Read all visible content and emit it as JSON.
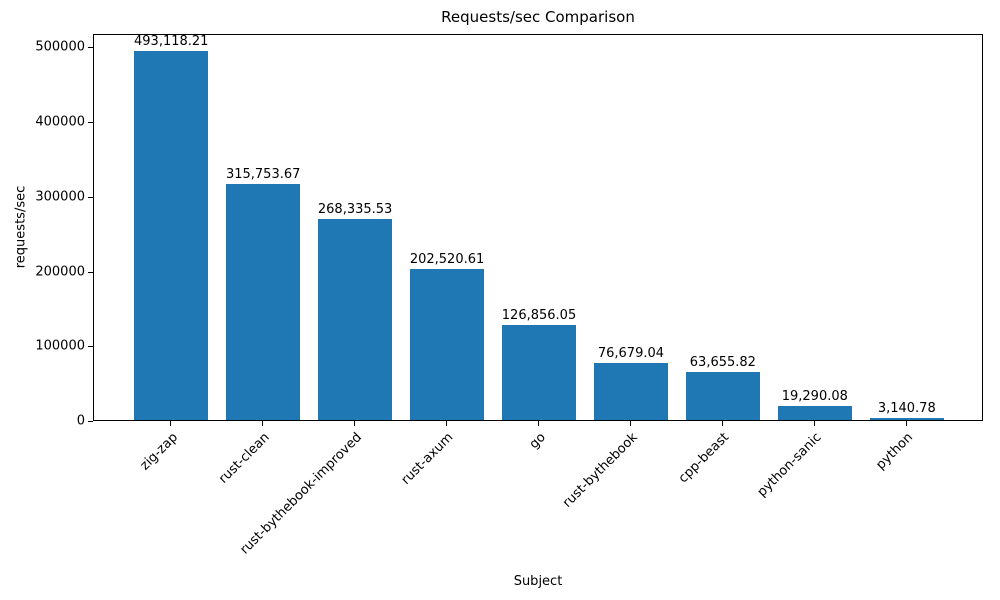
{
  "chart_data": {
    "type": "bar",
    "title": "Requests/sec Comparison",
    "xlabel": "Subject",
    "ylabel": "requests/sec",
    "categories": [
      "zig-zap",
      "rust-clean",
      "rust-bythebook-improved",
      "rust-axum",
      "go",
      "rust-bythebook",
      "cpp-beast",
      "python-sanic",
      "python"
    ],
    "values": [
      493118.21,
      315753.67,
      268335.53,
      202520.61,
      126856.05,
      76679.04,
      63655.82,
      19290.08,
      3140.78
    ],
    "value_labels": [
      "493,118.21",
      "315,753.67",
      "268,335.53",
      "202,520.61",
      "126,856.05",
      "76,679.04",
      "63,655.82",
      "19,290.08",
      "3,140.78"
    ],
    "yticks": [
      0,
      100000,
      200000,
      300000,
      400000,
      500000
    ],
    "ytick_labels": [
      "0",
      "100000",
      "200000",
      "300000",
      "400000",
      "500000"
    ],
    "ylim": [
      0,
      517774
    ],
    "bar_color": "#1f77b4",
    "axis_color": "#000000",
    "grid": false,
    "legend": null
  }
}
